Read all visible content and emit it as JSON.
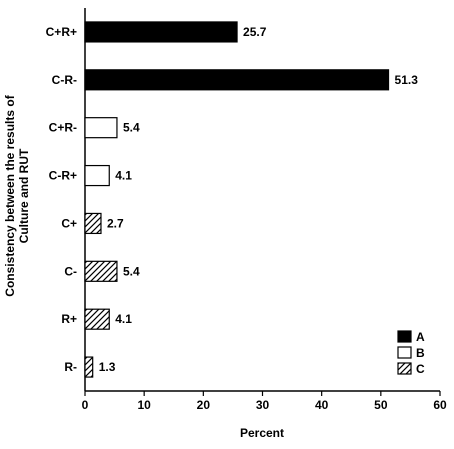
{
  "chart_data": {
    "type": "bar",
    "orientation": "horizontal",
    "categories": [
      "C+R+",
      "C-R-",
      "C+R-",
      "C-R+",
      "C+",
      "C-",
      "R+",
      "R-"
    ],
    "values": [
      25.7,
      51.3,
      5.4,
      4.1,
      2.7,
      5.4,
      4.1,
      1.3
    ],
    "value_labels": [
      "25.7",
      "51.3",
      "5.4",
      "4.1",
      "2.7",
      "5.4",
      "4.1",
      "1.3"
    ],
    "groups": [
      "A",
      "A",
      "B",
      "B",
      "C",
      "C",
      "C",
      "C"
    ],
    "legend": [
      {
        "key": "A",
        "label": "A",
        "fill": "solid",
        "color": "#000000"
      },
      {
        "key": "B",
        "label": "B",
        "fill": "empty",
        "color": "#ffffff"
      },
      {
        "key": "C",
        "label": "C",
        "fill": "hatched",
        "color": "#000000"
      }
    ],
    "legend_position": "bottom-right",
    "xlabel": "Percent",
    "ylabel": "Consistency between the results of Culture and RUT",
    "ylabel_lines": [
      "Consistency between the results of",
      "Culture and RUT"
    ],
    "xlim": [
      0,
      60
    ],
    "xticks": [
      "0",
      "10",
      "20",
      "30",
      "40",
      "50",
      "60"
    ],
    "grid": false,
    "title": ""
  }
}
